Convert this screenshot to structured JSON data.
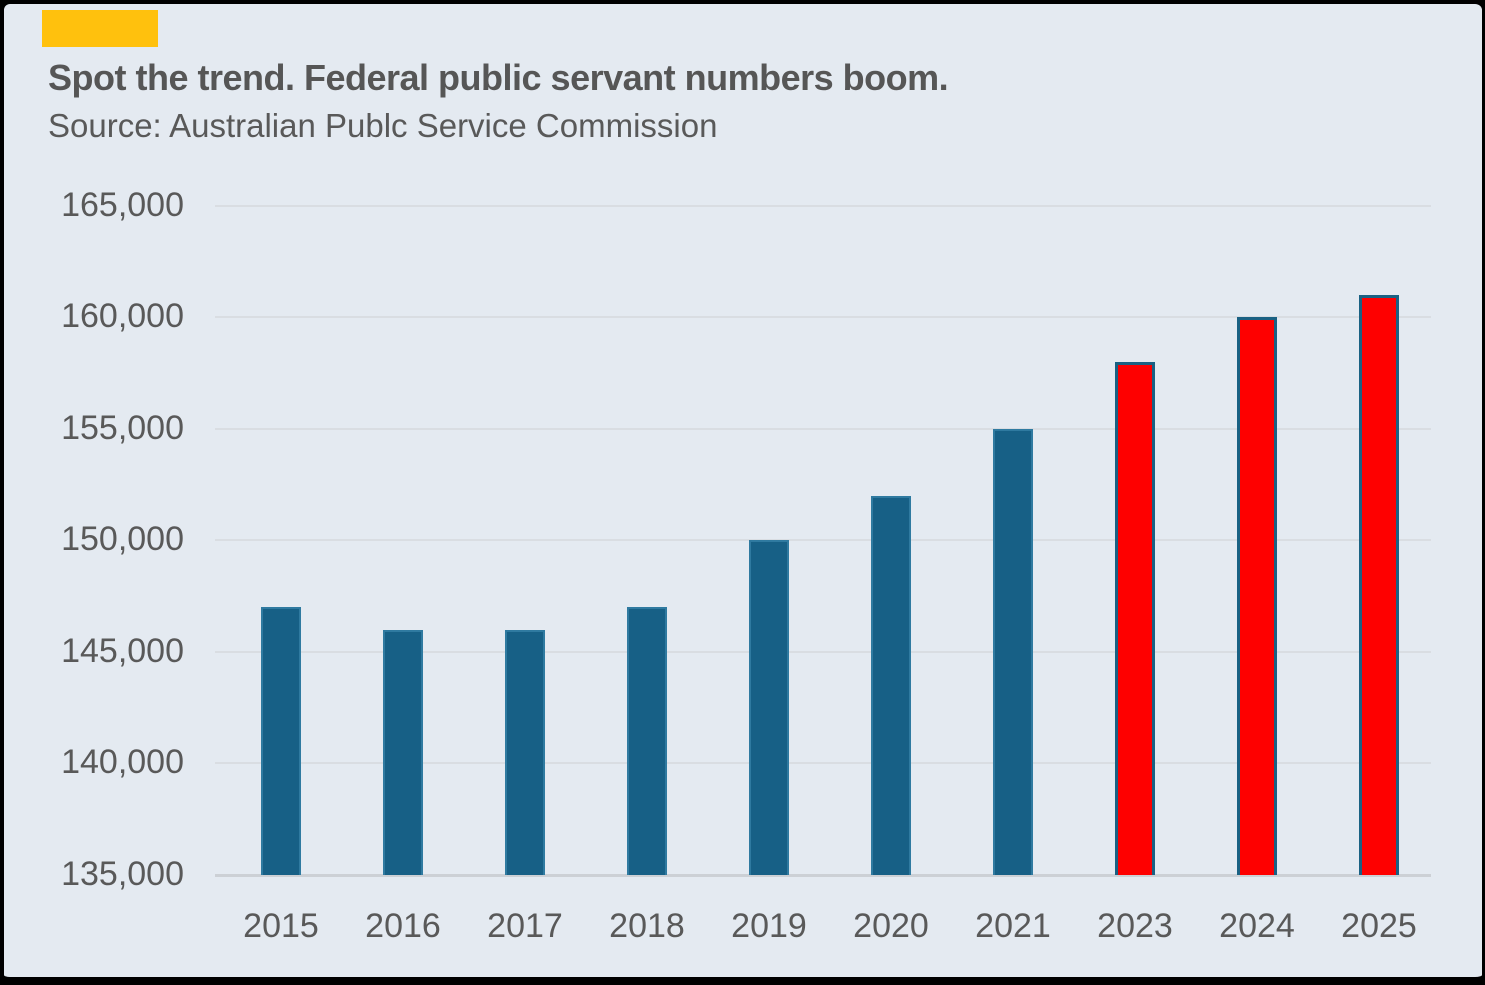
{
  "card": {
    "accent_bar_color": "#FFC10D",
    "title": "Spot the trend. Federal public servant numbers boom.",
    "source": "Source: Australian Publc Service Commission",
    "background_color": "#e4eaf1",
    "border_color": "#000000"
  },
  "chart_data": {
    "type": "bar",
    "title": "Spot the trend. Federal public servant numbers boom.",
    "subtitle": "Source: Australian Publc Service Commission",
    "categories": [
      "2015",
      "2016",
      "2017",
      "2018",
      "2019",
      "2020",
      "2021",
      "2023",
      "2024",
      "2025"
    ],
    "values": [
      147000,
      146000,
      146000,
      147000,
      150000,
      152000,
      155000,
      158000,
      160000,
      161000
    ],
    "highlighted_categories": [
      "2023",
      "2024",
      "2025"
    ],
    "xlabel": "",
    "ylabel": "",
    "ylim": [
      135000,
      165000
    ],
    "ytick_step": 5000,
    "ytick_labels": [
      "135,000",
      "140,000",
      "145,000",
      "150,000",
      "155,000",
      "160,000",
      "165,000"
    ],
    "grid": true,
    "legend_position": "none",
    "colors": {
      "bar_fill": "#176086",
      "bar_edge": "#2f7aa0",
      "highlight_fill": "#FE0000",
      "highlight_edge": "#1A6183",
      "gridline": "#d9dde2",
      "axis_line": "#ccd0d5",
      "tick_text": "#595959"
    }
  }
}
